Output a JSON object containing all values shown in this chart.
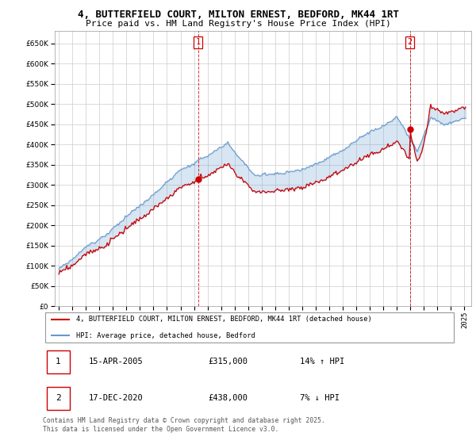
{
  "title_line1": "4, BUTTERFIELD COURT, MILTON ERNEST, BEDFORD, MK44 1RT",
  "title_line2": "Price paid vs. HM Land Registry's House Price Index (HPI)",
  "legend_label1": "4, BUTTERFIELD COURT, MILTON ERNEST, BEDFORD, MK44 1RT (detached house)",
  "legend_label2": "HPI: Average price, detached house, Bedford",
  "annotation1": {
    "num": "1",
    "date": "15-APR-2005",
    "price": "£315,000",
    "hpi": "14% ↑ HPI"
  },
  "annotation2": {
    "num": "2",
    "date": "17-DEC-2020",
    "price": "£438,000",
    "hpi": "7% ↓ HPI"
  },
  "footer": "Contains HM Land Registry data © Crown copyright and database right 2025.\nThis data is licensed under the Open Government Licence v3.0.",
  "red_color": "#cc0000",
  "blue_color": "#6699cc",
  "fill_color": "#cce0f0",
  "ylim": [
    0,
    680000
  ],
  "yticks": [
    0,
    50000,
    100000,
    150000,
    200000,
    250000,
    300000,
    350000,
    400000,
    450000,
    500000,
    550000,
    600000,
    650000
  ],
  "vline1_x": 2005.29,
  "vline2_x": 2020.96,
  "marker1_x": 2005.29,
  "marker1_y": 315000,
  "marker2_x": 2020.96,
  "marker2_y": 438000,
  "xlim_left": 1994.7,
  "xlim_right": 2025.5
}
